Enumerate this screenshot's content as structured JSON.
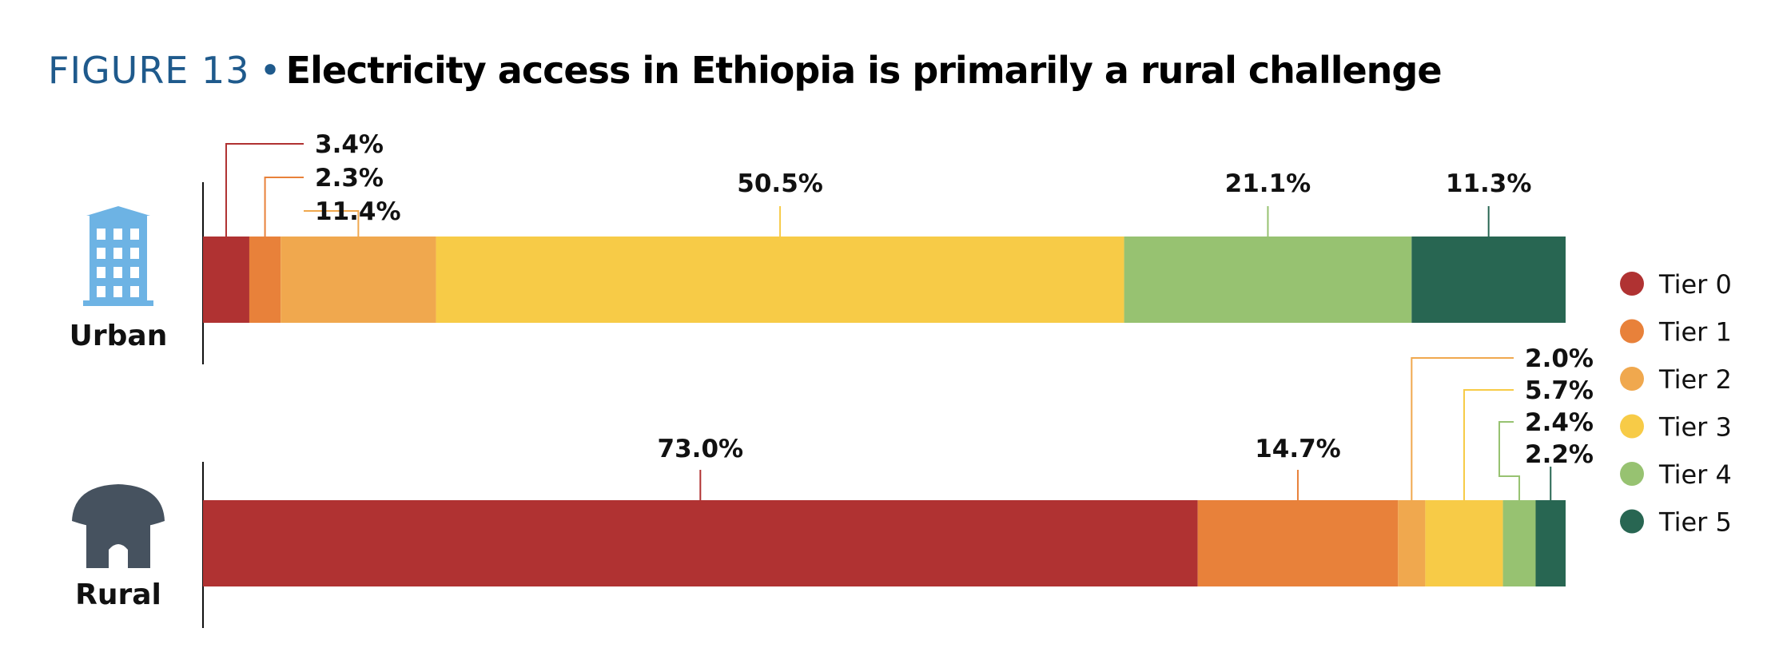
{
  "figure": {
    "label": "FIGURE 13",
    "separator": "•",
    "title": "Electricity access in Ethiopia is primarily a rural challenge"
  },
  "chart_data": {
    "type": "bar",
    "orientation": "horizontal",
    "stacked": true,
    "categories": [
      "Urban",
      "Rural"
    ],
    "series": [
      {
        "name": "Tier 0",
        "color": "#b03232",
        "values": [
          3.4,
          73.0
        ]
      },
      {
        "name": "Tier 1",
        "color": "#e8813a",
        "values": [
          2.3,
          14.7
        ]
      },
      {
        "name": "Tier 2",
        "color": "#f0a84e",
        "values": [
          11.4,
          2.0
        ]
      },
      {
        "name": "Tier 3",
        "color": "#f7cb47",
        "values": [
          50.5,
          5.7
        ]
      },
      {
        "name": "Tier 4",
        "color": "#97c271",
        "values": [
          21.1,
          2.4
        ]
      },
      {
        "name": "Tier 5",
        "color": "#286652",
        "values": [
          11.3,
          2.2
        ]
      }
    ],
    "value_labels": [
      [
        "3.4%",
        "2.3%",
        "11.4%",
        "50.5%",
        "21.1%",
        "11.3%"
      ],
      [
        "73.0%",
        "14.7%",
        "2.0%",
        "5.7%",
        "2.4%",
        "2.2%"
      ]
    ],
    "row_icons": [
      "building-icon",
      "hut-icon"
    ],
    "legend_position": "right",
    "grid": false
  }
}
